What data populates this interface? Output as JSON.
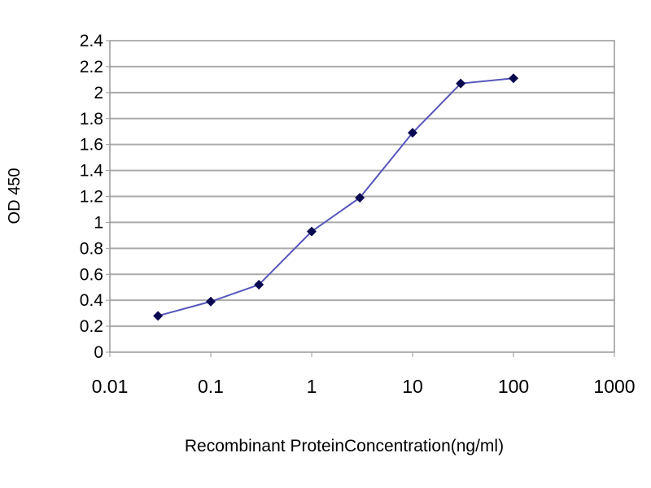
{
  "chart_data": {
    "type": "line",
    "title": "",
    "xlabel": "Recombinant ProteinConcentration(ng/ml)",
    "ylabel": "OD 450",
    "x_scale": "log",
    "xlim": [
      0.01,
      1000
    ],
    "ylim": [
      0,
      2.4
    ],
    "x_ticks": [
      "0.01",
      "0.1",
      "1",
      "10",
      "100",
      "1000"
    ],
    "x_tick_values": [
      0.01,
      0.1,
      1,
      10,
      100,
      1000
    ],
    "y_ticks": [
      "0",
      "0.2",
      "0.4",
      "0.6",
      "0.8",
      "1",
      "1.2",
      "1.4",
      "1.6",
      "1.8",
      "2",
      "2.2",
      "2.4"
    ],
    "y_tick_values": [
      0,
      0.2,
      0.4,
      0.6,
      0.8,
      1,
      1.2,
      1.4,
      1.6,
      1.8,
      2,
      2.2,
      2.4
    ],
    "grid": "horizontal",
    "legend": "none",
    "series": [
      {
        "x": [
          0.03,
          0.1,
          0.3,
          1,
          3,
          10,
          30,
          100
        ],
        "y": [
          0.28,
          0.39,
          0.52,
          0.93,
          1.19,
          1.69,
          2.07,
          2.11
        ],
        "color": "#5555bb",
        "marker_color": "#0a0a50",
        "marker": "diamond"
      }
    ]
  }
}
